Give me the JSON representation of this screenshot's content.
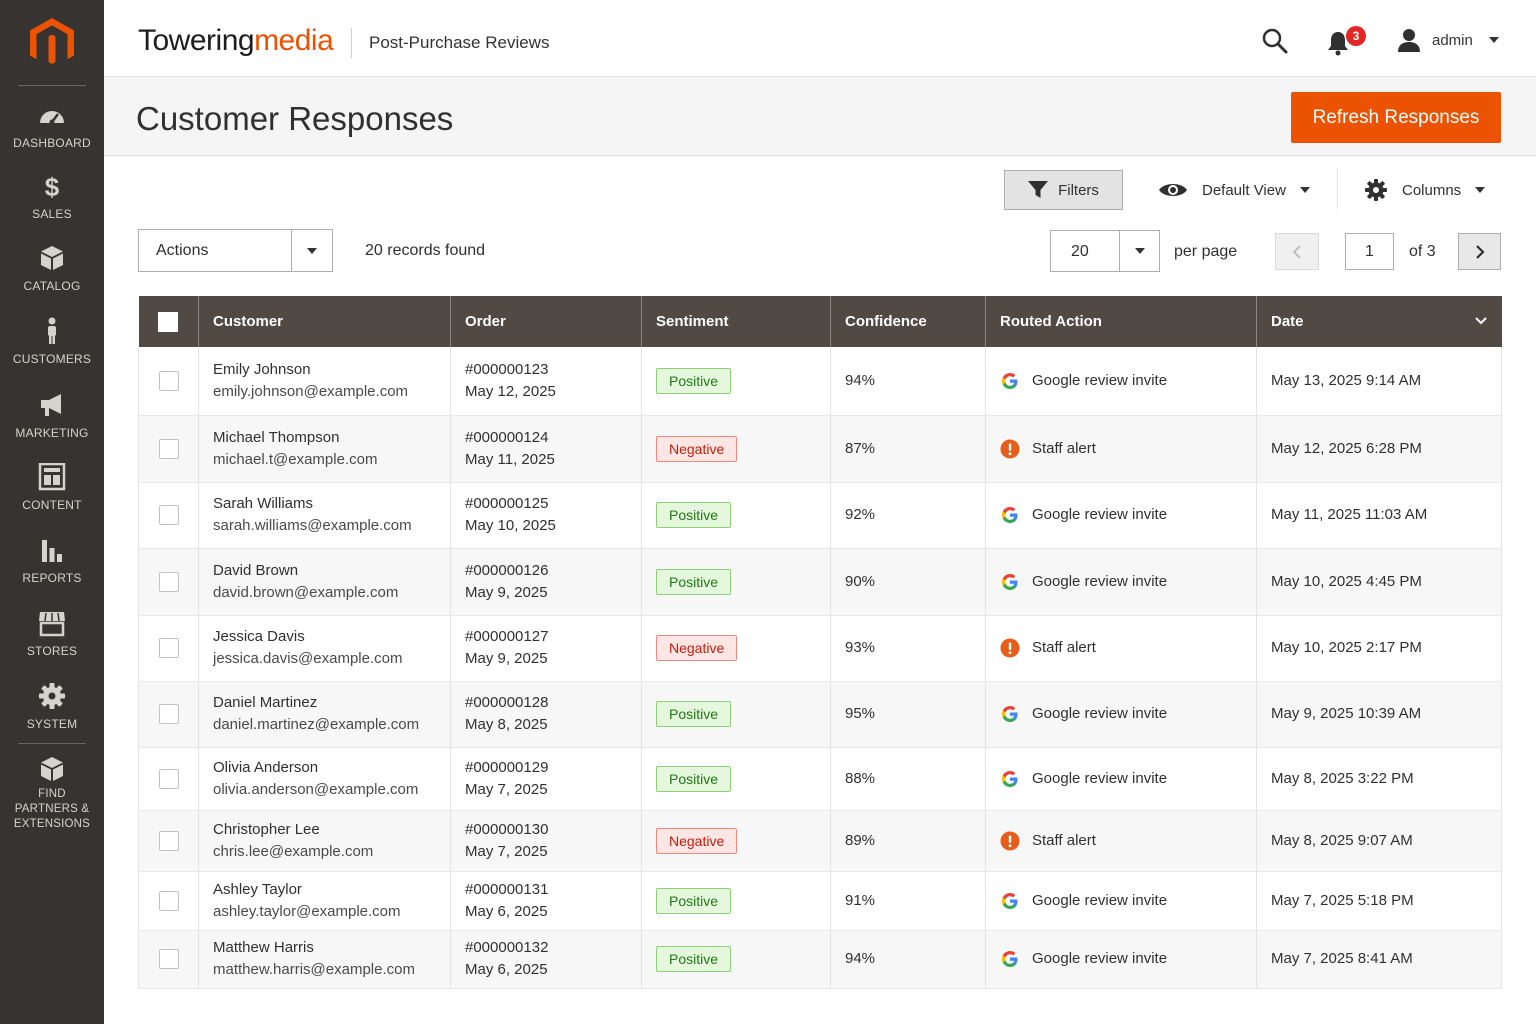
{
  "sidebar": {
    "items": [
      {
        "label": "DASHBOARD",
        "icon": "dashboard-icon"
      },
      {
        "label": "SALES",
        "icon": "dollar-icon"
      },
      {
        "label": "CATALOG",
        "icon": "box-icon"
      },
      {
        "label": "CUSTOMERS",
        "icon": "person-icon"
      },
      {
        "label": "MARKETING",
        "icon": "megaphone-icon"
      },
      {
        "label": "CONTENT",
        "icon": "layout-icon"
      },
      {
        "label": "REPORTS",
        "icon": "bar-chart-icon"
      },
      {
        "label": "STORES",
        "icon": "storefront-icon"
      },
      {
        "label": "SYSTEM",
        "icon": "gear-icon"
      },
      {
        "label": "FIND PARTNERS & EXTENSIONS",
        "icon": "cube-icon"
      }
    ]
  },
  "header": {
    "brand_main": "Towering",
    "brand_accent": "media",
    "module": "Post-Purchase Reviews",
    "notification_count": "3",
    "user": "admin"
  },
  "page": {
    "title": "Customer Responses",
    "refresh_label": "Refresh Responses"
  },
  "toolbar": {
    "filters_label": "Filters",
    "view_label": "Default View",
    "columns_label": "Columns",
    "actions_label": "Actions",
    "records_text": "20 records found",
    "per_page_value": "20",
    "per_page_label": "per page",
    "current_page": "1",
    "of_pages": "of 3"
  },
  "colors": {
    "accent": "#eb5202",
    "sidebar": "#373330",
    "table_header": "#514943",
    "positive": "#1f7a15",
    "negative": "#c41c0c"
  },
  "grid": {
    "columns": [
      "Customer",
      "Order",
      "Sentiment",
      "Confidence",
      "Routed Action",
      "Date"
    ],
    "rows": [
      {
        "name": "Emily Johnson",
        "email": "emily.johnson@example.com",
        "order": "#000000123",
        "order_date": "May 12, 2025",
        "sentiment": "Positive",
        "confidence": "94%",
        "action": "Google review invite",
        "date": "May 13, 2025 9:14 AM"
      },
      {
        "name": "Michael Thompson",
        "email": "michael.t@example.com",
        "order": "#000000124",
        "order_date": "May 11, 2025",
        "sentiment": "Negative",
        "confidence": "87%",
        "action": "Staff alert",
        "date": "May 12, 2025 6:28 PM"
      },
      {
        "name": "Sarah Williams",
        "email": "sarah.williams@example.com",
        "order": "#000000125",
        "order_date": "May 10, 2025",
        "sentiment": "Positive",
        "confidence": "92%",
        "action": "Google review invite",
        "date": "May 11, 2025 11:03 AM"
      },
      {
        "name": "David Brown",
        "email": "david.brown@example.com",
        "order": "#000000126",
        "order_date": "May 9, 2025",
        "sentiment": "Positive",
        "confidence": "90%",
        "action": "Google review invite",
        "date": "May 10, 2025 4:45 PM"
      },
      {
        "name": "Jessica Davis",
        "email": "jessica.davis@example.com",
        "order": "#000000127",
        "order_date": "May 9, 2025",
        "sentiment": "Negative",
        "confidence": "93%",
        "action": "Staff alert",
        "date": "May 10, 2025 2:17 PM"
      },
      {
        "name": "Daniel Martinez",
        "email": "daniel.martinez@example.com",
        "order": "#000000128",
        "order_date": "May 8, 2025",
        "sentiment": "Positive",
        "confidence": "95%",
        "action": "Google review invite",
        "date": "May 9, 2025 10:39 AM"
      },
      {
        "name": "Olivia Anderson",
        "email": "olivia.anderson@example.com",
        "order": "#000000129",
        "order_date": "May 7, 2025",
        "sentiment": "Positive",
        "confidence": "88%",
        "action": "Google review invite",
        "date": "May 8, 2025 3:22 PM"
      },
      {
        "name": "Christopher Lee",
        "email": "chris.lee@example.com",
        "order": "#000000130",
        "order_date": "May 7, 2025",
        "sentiment": "Negative",
        "confidence": "89%",
        "action": "Staff alert",
        "date": "May 8, 2025 9:07 AM"
      },
      {
        "name": "Ashley Taylor",
        "email": "ashley.taylor@example.com",
        "order": "#000000131",
        "order_date": "May 6, 2025",
        "sentiment": "Positive",
        "confidence": "91%",
        "action": "Google review invite",
        "date": "May 7, 2025 5:18 PM"
      },
      {
        "name": "Matthew Harris",
        "email": "matthew.harris@example.com",
        "order": "#000000132",
        "order_date": "May 6, 2025",
        "sentiment": "Positive",
        "confidence": "94%",
        "action": "Google review invite",
        "date": "May 7, 2025 8:41 AM"
      }
    ]
  }
}
